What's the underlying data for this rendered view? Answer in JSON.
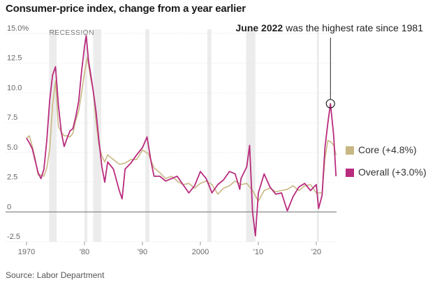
{
  "title": "Consumer-price index, change from a year earlier",
  "source": "Source: Labor Department",
  "chart_data": {
    "type": "line",
    "title": "Consumer-price index, change from a year earlier",
    "ylim": [
      -2.5,
      15.0
    ],
    "xlim": [
      1970,
      2023.5
    ],
    "y_ticks": [
      {
        "value": 15.0,
        "label": "15.0%"
      },
      {
        "value": 12.5,
        "label": "12.5"
      },
      {
        "value": 10.0,
        "label": "10.0"
      },
      {
        "value": 7.5,
        "label": "7.5"
      },
      {
        "value": 5.0,
        "label": "5.0"
      },
      {
        "value": 2.5,
        "label": "2.5"
      },
      {
        "value": 0,
        "label": "0"
      },
      {
        "value": -2.5,
        "label": "-2.5"
      }
    ],
    "x_ticks": [
      {
        "value": 1970,
        "label": "1970"
      },
      {
        "value": 1980,
        "label": "'80"
      },
      {
        "value": 1990,
        "label": "'90"
      },
      {
        "value": 2000,
        "label": "2000"
      },
      {
        "value": 2010,
        "label": "'10"
      },
      {
        "value": 2020,
        "label": "'20"
      }
    ],
    "grid": "horizontal",
    "recession_label": "RECESSION",
    "recessions": [
      [
        1973.9,
        1975.2
      ],
      [
        1980.0,
        1980.5
      ],
      [
        1981.5,
        1982.9
      ],
      [
        1990.5,
        1991.2
      ],
      [
        2001.2,
        2001.9
      ],
      [
        2007.9,
        2009.5
      ],
      [
        2020.1,
        2020.4
      ]
    ],
    "series": [
      {
        "name": "Core (+4.8%)",
        "color": "#c8b784",
        "x": [
          1970,
          1970.5,
          1971,
          1971.5,
          1972,
          1972.5,
          1973,
          1973.5,
          1974,
          1974.5,
          1975,
          1975.5,
          1976,
          1976.5,
          1977,
          1977.5,
          1978,
          1978.5,
          1979,
          1979.5,
          1980,
          1980.5,
          1981,
          1981.5,
          1982,
          1982.5,
          1983,
          1983.5,
          1984,
          1985,
          1986,
          1987,
          1988,
          1989,
          1990,
          1991,
          1992,
          1993,
          1994,
          1995,
          1996,
          1997,
          1998,
          1999,
          2000,
          2001,
          2002,
          2003,
          2004,
          2005,
          2006,
          2007,
          2008,
          2009,
          2010,
          2011,
          2012,
          2013,
          2014,
          2015,
          2016,
          2017,
          2018,
          2019,
          2020,
          2020.5,
          2021,
          2021.5,
          2022,
          2022.5,
          2023,
          2023.4
        ],
        "values": [
          6.2,
          6.4,
          5.5,
          4.5,
          3.1,
          3.1,
          3.0,
          3.7,
          5.3,
          9.0,
          11.0,
          7.2,
          6.7,
          6.4,
          6.4,
          6.3,
          6.6,
          7.7,
          8.5,
          10.0,
          11.7,
          13.0,
          11.4,
          10.2,
          7.6,
          5.6,
          4.7,
          4.2,
          4.8,
          4.4,
          4.0,
          4.1,
          4.4,
          4.4,
          5.2,
          4.9,
          3.7,
          3.3,
          2.8,
          3.0,
          2.6,
          2.3,
          2.4,
          2.0,
          2.4,
          2.6,
          2.3,
          1.5,
          2.0,
          2.2,
          2.6,
          2.3,
          2.4,
          1.8,
          0.9,
          1.8,
          2.0,
          1.7,
          1.8,
          1.9,
          2.2,
          1.8,
          2.2,
          2.3,
          1.6,
          1.6,
          1.6,
          4.5,
          6.0,
          5.9,
          5.6,
          4.8
        ]
      },
      {
        "name": "Overall (+3.0%)",
        "color": "#b82b7d",
        "x": [
          1970,
          1970.5,
          1971,
          1971.5,
          1972,
          1972.5,
          1973,
          1973.5,
          1974,
          1974.5,
          1975,
          1975.5,
          1976,
          1976.5,
          1977,
          1977.5,
          1978,
          1978.5,
          1979,
          1979.5,
          1980,
          1980.3,
          1980.7,
          1981,
          1981.5,
          1982,
          1982.5,
          1983,
          1983.5,
          1984,
          1985,
          1986,
          1986.5,
          1987,
          1988,
          1989,
          1990,
          1990.8,
          1991.5,
          1992,
          1993,
          1994,
          1995,
          1996,
          1997,
          1998,
          1999,
          2000,
          2001,
          2002,
          2003,
          2004,
          2005,
          2006,
          2006.8,
          2007,
          2008,
          2008.5,
          2009,
          2009.5,
          2010,
          2011,
          2012,
          2013,
          2014,
          2015,
          2016,
          2017,
          2018,
          2019,
          2020,
          2020.4,
          2021,
          2021.5,
          2022,
          2022.45,
          2023,
          2023.4
        ],
        "values": [
          6.2,
          5.8,
          5.3,
          4.3,
          3.3,
          2.8,
          3.6,
          6.0,
          9.4,
          11.5,
          12.2,
          9.0,
          6.7,
          5.5,
          6.2,
          6.8,
          7.0,
          8.0,
          9.3,
          11.8,
          13.9,
          14.8,
          12.7,
          11.8,
          10.2,
          8.4,
          6.0,
          3.8,
          2.5,
          4.2,
          3.6,
          1.8,
          1.1,
          3.6,
          4.1,
          4.8,
          5.4,
          6.3,
          4.2,
          3.0,
          3.0,
          2.6,
          2.8,
          3.0,
          2.3,
          1.6,
          2.2,
          3.4,
          2.8,
          1.6,
          2.3,
          2.7,
          3.4,
          3.2,
          1.9,
          2.8,
          3.8,
          5.6,
          0.0,
          -2.0,
          1.6,
          3.2,
          2.1,
          1.5,
          1.6,
          0.1,
          1.3,
          2.1,
          2.4,
          1.8,
          2.3,
          0.3,
          1.4,
          5.4,
          7.5,
          9.1,
          6.4,
          3.0
        ]
      }
    ],
    "annotation": {
      "x": 2022.45,
      "y": 9.1,
      "bold": "June 2022",
      "text": " was the highest rate since 1981"
    },
    "legend_position": "right"
  }
}
